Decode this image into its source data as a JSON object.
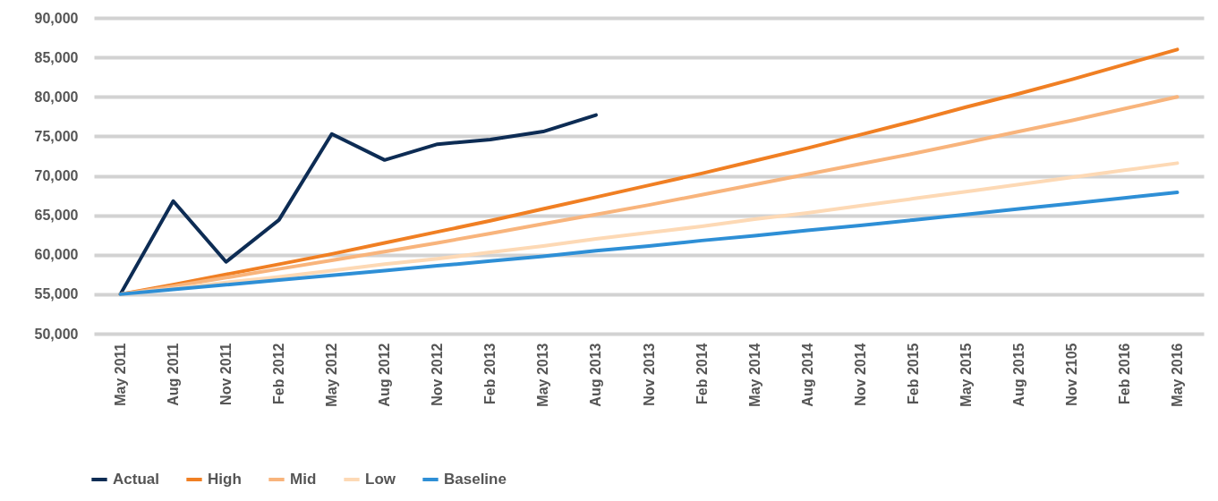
{
  "chart_data": {
    "type": "line",
    "categories": [
      "May 2011",
      "Aug  2011",
      "Nov 2011",
      "Feb 2012",
      "May 2012",
      "Aug 2012",
      "Nov 2012",
      "Feb 2013",
      "May 2013",
      "Aug 2013",
      "Nov 2013",
      "Feb 2014",
      "May 2014",
      "Aug 2014",
      "Nov 2014",
      "Feb 2015",
      "May 2015",
      "Aug 2015",
      "Nov 2105",
      "Feb 2016",
      "May 2016"
    ],
    "series": [
      {
        "name": "Actual",
        "color": "#0d2c54",
        "values": [
          55000,
          66800,
          59100,
          64400,
          75300,
          72000,
          74000,
          74600,
          75600,
          77700,
          null,
          null,
          null,
          null,
          null,
          null,
          null,
          null,
          null,
          null,
          null
        ]
      },
      {
        "name": "High",
        "color": "#f07f23",
        "values": [
          55000,
          56200,
          57500,
          58800,
          60100,
          61500,
          62900,
          64300,
          65800,
          67300,
          68800,
          70300,
          71900,
          73500,
          75200,
          76900,
          78700,
          80400,
          82200,
          84100,
          86000
        ]
      },
      {
        "name": "Mid",
        "color": "#f8b47c",
        "values": [
          55000,
          56000,
          57100,
          58200,
          59300,
          60400,
          61500,
          62700,
          63900,
          65100,
          66300,
          67600,
          68900,
          70200,
          71500,
          72800,
          74200,
          75600,
          77000,
          78500,
          80000
        ]
      },
      {
        "name": "Low",
        "color": "#fdd9b5",
        "values": [
          55000,
          55700,
          56500,
          57200,
          58000,
          58800,
          59500,
          60300,
          61100,
          62000,
          62800,
          63600,
          64500,
          65300,
          66200,
          67100,
          68000,
          68900,
          69800,
          70700,
          71600
        ]
      },
      {
        "name": "Baseline",
        "color": "#2e8fd6",
        "values": [
          55000,
          55600,
          56200,
          56800,
          57400,
          58000,
          58600,
          59200,
          59800,
          60500,
          61100,
          61800,
          62400,
          63100,
          63700,
          64400,
          65100,
          65800,
          66500,
          67200,
          67900
        ]
      }
    ],
    "ylim": [
      50000,
      90000
    ],
    "yticks": [
      {
        "value": 50000,
        "label": "50,000"
      },
      {
        "value": 55000,
        "label": "55,000"
      },
      {
        "value": 60000,
        "label": "60,000"
      },
      {
        "value": 65000,
        "label": "65,000"
      },
      {
        "value": 70000,
        "label": "70,000"
      },
      {
        "value": 75000,
        "label": "75,000"
      },
      {
        "value": 80000,
        "label": "80,000"
      },
      {
        "value": 85000,
        "label": "85,000"
      },
      {
        "value": 90000,
        "label": "90,000"
      }
    ],
    "grid": "y",
    "legend": "bottom left"
  }
}
